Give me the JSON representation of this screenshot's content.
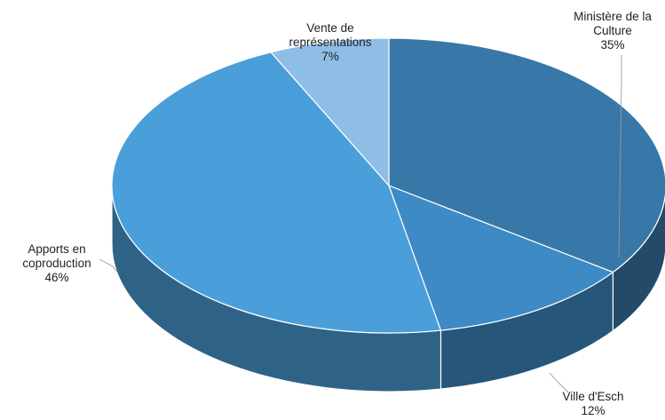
{
  "chart_data": {
    "type": "pie",
    "style": "3d",
    "title": "",
    "slices": [
      {
        "name": "Ministère de la Culture",
        "value": 35,
        "label_lines": [
          "Ministère de la",
          "Culture"
        ],
        "pct_label": "35%",
        "color": "#3878a8"
      },
      {
        "name": "Ville d'Esch",
        "value": 12,
        "label_lines": [
          "Ville d'Esch"
        ],
        "pct_label": "12%",
        "color": "#3d8ac4"
      },
      {
        "name": "Apports en coproduction",
        "value": 46,
        "label_lines": [
          "Apports en",
          "coproduction"
        ],
        "pct_label": "46%",
        "color": "#4a9fda"
      },
      {
        "name": "Vente de représentations",
        "value": 7,
        "label_lines": [
          "Vente de",
          "représentations"
        ],
        "pct_label": "7%",
        "color": "#8ebde5"
      }
    ]
  }
}
